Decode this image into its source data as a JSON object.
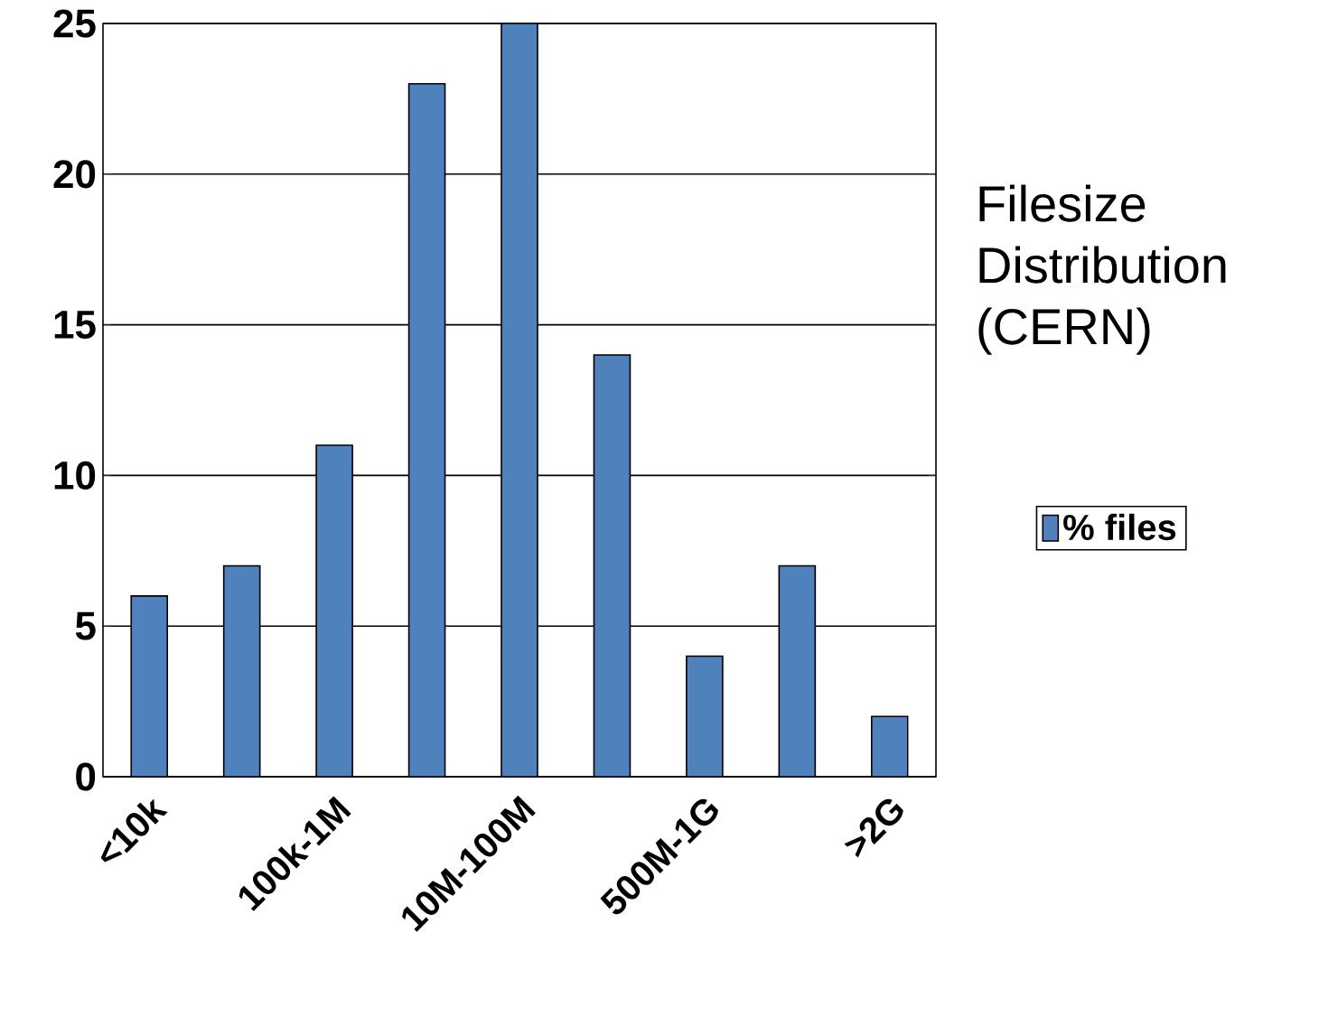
{
  "chart_data": {
    "type": "bar",
    "title": "Filesize Distribution (CERN)",
    "categories": [
      "<10k",
      null,
      "100k-1M",
      null,
      "10M-100M",
      null,
      "500M-1G",
      null,
      ">2G"
    ],
    "series": [
      {
        "name": "% files",
        "color": "#4f81bd",
        "values": [
          6,
          7,
          11,
          23,
          25,
          14,
          4,
          7,
          2
        ]
      }
    ],
    "ylim": [
      0,
      25
    ],
    "yticks": [
      0,
      5,
      10,
      15,
      20,
      25
    ],
    "grid": "y",
    "legend": "right"
  }
}
